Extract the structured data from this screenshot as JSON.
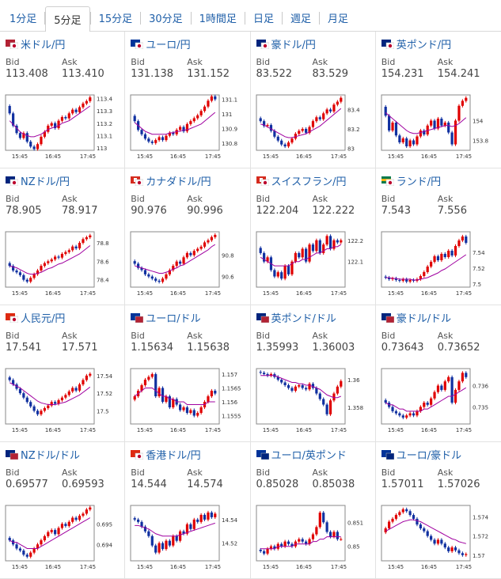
{
  "tabs": [
    {
      "label": "1分足",
      "active": false
    },
    {
      "label": "5分足",
      "active": true
    },
    {
      "label": "15分足",
      "active": false
    },
    {
      "label": "30分足",
      "active": false
    },
    {
      "label": "1時間足",
      "active": false
    },
    {
      "label": "日足",
      "active": false
    },
    {
      "label": "週足",
      "active": false
    },
    {
      "label": "月足",
      "active": false
    }
  ],
  "labels": {
    "bid": "Bid",
    "ask": "Ask"
  },
  "colors": {
    "up": "#e00000",
    "down": "#1030a0",
    "ma": "#a000a0",
    "link": "#1f5fa8"
  },
  "pairs": [
    {
      "name": "米ドル/円",
      "flag": "us-jp-flag-icon",
      "bid": "113.408",
      "ask": "113.410"
    },
    {
      "name": "ユーロ/円",
      "flag": "eu-jp-flag-icon",
      "bid": "131.138",
      "ask": "131.152"
    },
    {
      "name": "豪ドル/円",
      "flag": "au-jp-flag-icon",
      "bid": "83.522",
      "ask": "83.529"
    },
    {
      "name": "英ポンド/円",
      "flag": "gb-jp-flag-icon",
      "bid": "154.231",
      "ask": "154.241"
    },
    {
      "name": "NZドル/円",
      "flag": "nz-jp-flag-icon",
      "bid": "78.905",
      "ask": "78.917"
    },
    {
      "name": "カナダドル/円",
      "flag": "ca-jp-flag-icon",
      "bid": "90.976",
      "ask": "90.996"
    },
    {
      "name": "スイスフラン/円",
      "flag": "ch-jp-flag-icon",
      "bid": "122.204",
      "ask": "122.222"
    },
    {
      "name": "ランド/円",
      "flag": "za-jp-flag-icon",
      "bid": "7.543",
      "ask": "7.556"
    },
    {
      "name": "人民元/円",
      "flag": "cn-jp-flag-icon",
      "bid": "17.541",
      "ask": "17.571"
    },
    {
      "name": "ユーロ/ドル",
      "flag": "eu-us-flag-icon",
      "bid": "1.15634",
      "ask": "1.15638"
    },
    {
      "name": "英ポンド/ドル",
      "flag": "gb-us-flag-icon",
      "bid": "1.35993",
      "ask": "1.36003"
    },
    {
      "name": "豪ドル/ドル",
      "flag": "au-us-flag-icon",
      "bid": "0.73643",
      "ask": "0.73652"
    },
    {
      "name": "NZドル/ドル",
      "flag": "nz-us-flag-icon",
      "bid": "0.69577",
      "ask": "0.69593"
    },
    {
      "name": "香港ドル/円",
      "flag": "hk-jp-flag-icon",
      "bid": "14.544",
      "ask": "14.574"
    },
    {
      "name": "ユーロ/英ポンド",
      "flag": "eu-gb-flag-icon",
      "bid": "0.85028",
      "ask": "0.85038"
    },
    {
      "name": "ユーロ/豪ドル",
      "flag": "eu-au-flag-icon",
      "bid": "1.57011",
      "ask": "1.57026"
    }
  ],
  "chart_data": [
    {
      "type": "candlestick",
      "xticks": [
        "15:45",
        "16:45",
        "17:45"
      ],
      "yticks": [
        "113",
        "113.1",
        "113.2",
        "113.3",
        "113.4"
      ],
      "ylim": [
        112.98,
        113.43
      ],
      "close": [
        113.28,
        113.18,
        113.12,
        113.08,
        113.12,
        113.05,
        113.01,
        112.99,
        113.03,
        113.09,
        113.13,
        113.18,
        113.2,
        113.16,
        113.22,
        113.25,
        113.24,
        113.28,
        113.31,
        113.29,
        113.33,
        113.36,
        113.38,
        113.41
      ],
      "ma": [
        113.22,
        113.19,
        113.16,
        113.13,
        113.11,
        113.1,
        113.09,
        113.09,
        113.1,
        113.11,
        113.13,
        113.15,
        113.16,
        113.17,
        113.18,
        113.2,
        113.21,
        113.22,
        113.24,
        113.26,
        113.28,
        113.3,
        113.32,
        113.34
      ]
    },
    {
      "type": "candlestick",
      "xticks": [
        "15:45",
        "16:45",
        "17:45"
      ],
      "yticks": [
        "130.8",
        "130.9",
        "131",
        "131.1"
      ],
      "ylim": [
        130.75,
        131.13
      ],
      "close": [
        130.95,
        130.89,
        130.86,
        130.83,
        130.81,
        130.8,
        130.82,
        130.84,
        130.82,
        130.85,
        130.87,
        130.86,
        130.89,
        130.91,
        130.88,
        130.93,
        130.95,
        130.97,
        130.99,
        131.02,
        131.05,
        131.09,
        131.12,
        131.1
      ],
      "ma": [
        130.94,
        130.92,
        130.9,
        130.88,
        130.87,
        130.86,
        130.86,
        130.86,
        130.86,
        130.86,
        130.87,
        130.87,
        130.88,
        130.88,
        130.89,
        130.89,
        130.9,
        130.91,
        130.92,
        130.93,
        130.95,
        130.97,
        130.99,
        131.01
      ]
    },
    {
      "type": "candlestick",
      "xticks": [
        "15:45",
        "16:45",
        "17:45"
      ],
      "yticks": [
        "83",
        "83.2",
        "83.4"
      ],
      "ylim": [
        82.98,
        83.55
      ],
      "close": [
        83.28,
        83.23,
        83.24,
        83.18,
        83.12,
        83.08,
        83.04,
        83.02,
        83.06,
        83.1,
        83.15,
        83.18,
        83.2,
        83.16,
        83.22,
        83.28,
        83.32,
        83.3,
        83.36,
        83.4,
        83.38,
        83.45,
        83.48,
        83.52
      ],
      "ma": [
        83.25,
        83.24,
        83.22,
        83.2,
        83.18,
        83.16,
        83.14,
        83.12,
        83.11,
        83.11,
        83.12,
        83.13,
        83.14,
        83.15,
        83.17,
        83.19,
        83.21,
        83.23,
        83.26,
        83.29,
        83.32,
        83.35,
        83.38,
        83.41
      ]
    },
    {
      "type": "candlestick",
      "xticks": [
        "15:45",
        "16:45",
        "17:45"
      ],
      "yticks": [
        "153.8",
        "154"
      ],
      "ylim": [
        153.7,
        154.26
      ],
      "close": [
        154.05,
        153.9,
        153.98,
        153.85,
        153.78,
        153.82,
        153.74,
        153.8,
        153.76,
        153.84,
        153.9,
        153.86,
        153.95,
        154.0,
        153.92,
        154.02,
        153.95,
        153.98,
        153.88,
        153.76,
        154.0,
        154.15,
        154.2,
        154.23
      ],
      "ma": [
        154.08,
        154.05,
        154.02,
        153.99,
        153.96,
        153.93,
        153.9,
        153.88,
        153.87,
        153.87,
        153.88,
        153.89,
        153.9,
        153.91,
        153.92,
        153.93,
        153.94,
        153.95,
        153.95,
        153.94,
        153.95,
        153.97,
        154.0,
        154.03
      ]
    },
    {
      "type": "candlestick",
      "xticks": [
        "15:45",
        "16:45",
        "17:45"
      ],
      "yticks": [
        "78.4",
        "78.6",
        "78.8"
      ],
      "ylim": [
        78.32,
        78.92
      ],
      "close": [
        78.55,
        78.5,
        78.48,
        78.45,
        78.4,
        78.38,
        78.42,
        78.46,
        78.5,
        78.55,
        78.58,
        78.6,
        78.62,
        78.65,
        78.64,
        78.68,
        78.7,
        78.72,
        78.76,
        78.74,
        78.8,
        78.84,
        78.86,
        78.88
      ],
      "ma": [
        78.55,
        78.54,
        78.53,
        78.51,
        78.49,
        78.47,
        78.46,
        78.46,
        78.47,
        78.48,
        78.5,
        78.52,
        78.53,
        78.55,
        78.57,
        78.58,
        78.6,
        78.62,
        78.64,
        78.66,
        78.68,
        78.71,
        78.74,
        78.77
      ]
    },
    {
      "type": "candlestick",
      "xticks": [
        "15:45",
        "16:45",
        "17:45"
      ],
      "yticks": [
        "90.6",
        "90.8"
      ],
      "ylim": [
        90.5,
        91.02
      ],
      "close": [
        90.72,
        90.68,
        90.66,
        90.62,
        90.6,
        90.58,
        90.56,
        90.55,
        90.58,
        90.62,
        90.66,
        90.7,
        90.74,
        90.72,
        90.78,
        90.82,
        90.8,
        90.84,
        90.86,
        90.88,
        90.92,
        90.94,
        90.97,
        90.99
      ],
      "ma": [
        90.7,
        90.69,
        90.68,
        90.67,
        90.66,
        90.65,
        90.64,
        90.63,
        90.63,
        90.64,
        90.65,
        90.67,
        90.68,
        90.7,
        90.71,
        90.73,
        90.75,
        90.77,
        90.79,
        90.81,
        90.83,
        90.85,
        90.88,
        90.9
      ]
    },
    {
      "type": "candlestick",
      "xticks": [
        "15:45",
        "16:45",
        "17:45"
      ],
      "yticks": [
        "122.1",
        "122.2"
      ],
      "ylim": [
        121.98,
        122.24
      ],
      "close": [
        122.14,
        122.1,
        122.12,
        122.06,
        122.03,
        122.05,
        122.02,
        122.08,
        122.04,
        122.1,
        122.14,
        122.12,
        122.16,
        122.1,
        122.18,
        122.15,
        122.2,
        122.14,
        122.18,
        122.22,
        122.16,
        122.2,
        122.19,
        122.2
      ],
      "ma": [
        122.12,
        122.11,
        122.1,
        122.09,
        122.08,
        122.08,
        122.08,
        122.08,
        122.08,
        122.09,
        122.1,
        122.1,
        122.11,
        122.11,
        122.12,
        122.13,
        122.14,
        122.14,
        122.15,
        122.16,
        122.16,
        122.17,
        122.17,
        122.18
      ]
    },
    {
      "type": "candlestick",
      "xticks": [
        "15:45",
        "16:45",
        "17:45"
      ],
      "yticks": [
        "7.5",
        "7.52",
        "7.54"
      ],
      "ylim": [
        7.496,
        7.566
      ],
      "close": [
        7.508,
        7.506,
        7.507,
        7.505,
        7.504,
        7.506,
        7.503,
        7.505,
        7.504,
        7.506,
        7.51,
        7.515,
        7.522,
        7.528,
        7.535,
        7.53,
        7.538,
        7.534,
        7.542,
        7.536,
        7.548,
        7.555,
        7.56,
        7.552
      ],
      "ma": [
        7.508,
        7.508,
        7.507,
        7.507,
        7.506,
        7.506,
        7.506,
        7.506,
        7.505,
        7.505,
        7.506,
        7.507,
        7.508,
        7.51,
        7.512,
        7.514,
        7.517,
        7.519,
        7.522,
        7.525,
        7.528,
        7.531,
        7.534,
        7.537
      ]
    },
    {
      "type": "candlestick",
      "xticks": [
        "15:45",
        "16:45",
        "17:45"
      ],
      "yticks": [
        "17.5",
        "17.52",
        "17.54"
      ],
      "ylim": [
        17.485,
        17.548
      ],
      "close": [
        17.535,
        17.53,
        17.525,
        17.52,
        17.515,
        17.51,
        17.505,
        17.5,
        17.496,
        17.5,
        17.503,
        17.506,
        17.51,
        17.508,
        17.512,
        17.515,
        17.518,
        17.522,
        17.526,
        17.523,
        17.53,
        17.535,
        17.54,
        17.542
      ],
      "ma": [
        17.532,
        17.53,
        17.528,
        17.526,
        17.523,
        17.52,
        17.517,
        17.514,
        17.511,
        17.509,
        17.508,
        17.507,
        17.507,
        17.507,
        17.508,
        17.509,
        17.51,
        17.512,
        17.514,
        17.516,
        17.518,
        17.521,
        17.524,
        17.527
      ]
    },
    {
      "type": "candlestick",
      "xticks": [
        "15:45",
        "16:45",
        "17:45"
      ],
      "yticks": [
        "1.1555",
        "1.156",
        "1.1565",
        "1.157"
      ],
      "ylim": [
        1.1552,
        1.1572
      ],
      "close": [
        1.1562,
        1.1564,
        1.1566,
        1.1568,
        1.1569,
        1.157,
        1.1562,
        1.1565,
        1.156,
        1.1562,
        1.1558,
        1.1561,
        1.1559,
        1.1557,
        1.1558,
        1.1556,
        1.1557,
        1.1555,
        1.1556,
        1.1558,
        1.156,
        1.1562,
        1.1564,
        1.1563
      ],
      "ma": [
        1.1562,
        1.1563,
        1.1564,
        1.1565,
        1.1565,
        1.1565,
        1.1564,
        1.1563,
        1.1562,
        1.1562,
        1.1561,
        1.1561,
        1.156,
        1.156,
        1.156,
        1.1559,
        1.1559,
        1.1559,
        1.1559,
        1.1559,
        1.1559,
        1.156,
        1.156,
        1.156
      ]
    },
    {
      "type": "candlestick",
      "xticks": [
        "15:45",
        "16:45",
        "17:45"
      ],
      "yticks": [
        "1.358",
        "1.36"
      ],
      "ylim": [
        1.3568,
        1.3608
      ],
      "close": [
        1.3605,
        1.3604,
        1.3603,
        1.3604,
        1.3602,
        1.36,
        1.3598,
        1.3596,
        1.3594,
        1.3592,
        1.3595,
        1.3596,
        1.3594,
        1.3593,
        1.3597,
        1.3594,
        1.359,
        1.3586,
        1.3582,
        1.3575,
        1.3585,
        1.359,
        1.3595,
        1.3599
      ],
      "ma": [
        1.3603,
        1.3603,
        1.3603,
        1.3603,
        1.3603,
        1.3602,
        1.3601,
        1.36,
        1.3599,
        1.3598,
        1.3598,
        1.3597,
        1.3597,
        1.3596,
        1.3596,
        1.3595,
        1.3594,
        1.3593,
        1.3591,
        1.3589,
        1.3588,
        1.3587,
        1.3587,
        1.3588
      ]
    },
    {
      "type": "candlestick",
      "xticks": [
        "15:45",
        "16:45",
        "17:45"
      ],
      "yticks": [
        "0.735",
        "0.736"
      ],
      "ylim": [
        0.7342,
        0.7368
      ],
      "close": [
        0.7352,
        0.735,
        0.7348,
        0.7347,
        0.7346,
        0.7345,
        0.7346,
        0.7347,
        0.7346,
        0.7348,
        0.735,
        0.7352,
        0.7351,
        0.7354,
        0.7357,
        0.736,
        0.7358,
        0.7362,
        0.7364,
        0.7352,
        0.7358,
        0.7362,
        0.7366,
        0.7364
      ],
      "ma": [
        0.7352,
        0.7351,
        0.7351,
        0.735,
        0.7349,
        0.7349,
        0.7348,
        0.7348,
        0.7348,
        0.7348,
        0.7348,
        0.7349,
        0.7349,
        0.735,
        0.7351,
        0.7352,
        0.7353,
        0.7354,
        0.7355,
        0.7355,
        0.7356,
        0.7357,
        0.7358,
        0.7359
      ]
    },
    {
      "type": "candlestick",
      "xticks": [
        "15:45",
        "16:45",
        "17:45"
      ],
      "yticks": [
        "0.694",
        "0.695"
      ],
      "ylim": [
        0.6932,
        0.6959
      ],
      "close": [
        0.6942,
        0.694,
        0.6938,
        0.6937,
        0.6935,
        0.6934,
        0.6936,
        0.6938,
        0.694,
        0.6942,
        0.6944,
        0.6946,
        0.6947,
        0.6945,
        0.6948,
        0.695,
        0.6949,
        0.6951,
        0.6953,
        0.6952,
        0.6954,
        0.6955,
        0.6957,
        0.6958
      ],
      "ma": [
        0.6942,
        0.6941,
        0.6941,
        0.694,
        0.6939,
        0.6938,
        0.6938,
        0.6938,
        0.6938,
        0.6939,
        0.694,
        0.6941,
        0.6942,
        0.6943,
        0.6944,
        0.6945,
        0.6946,
        0.6947,
        0.6948,
        0.6949,
        0.695,
        0.6951,
        0.6952,
        0.6953
      ]
    },
    {
      "type": "candlestick",
      "xticks": [
        "15:45",
        "16:45",
        "17:45"
      ],
      "yticks": [
        "14.52",
        "14.54"
      ],
      "ylim": [
        14.505,
        14.552
      ],
      "close": [
        14.54,
        14.538,
        14.534,
        14.53,
        14.526,
        14.518,
        14.512,
        14.52,
        14.515,
        14.522,
        14.518,
        14.526,
        14.522,
        14.53,
        14.528,
        14.536,
        14.532,
        14.54,
        14.538,
        14.544,
        14.54,
        14.546,
        14.542,
        14.545
      ],
      "ma": [
        14.535,
        14.535,
        14.534,
        14.533,
        14.532,
        14.53,
        14.528,
        14.527,
        14.526,
        14.526,
        14.526,
        14.526,
        14.526,
        14.527,
        14.528,
        14.529,
        14.53,
        14.531,
        14.532,
        14.533,
        14.534,
        14.535,
        14.536,
        14.537
      ]
    },
    {
      "type": "candlestick",
      "xticks": [
        "15:45",
        "16:45",
        "17:45"
      ],
      "yticks": [
        "0.85",
        "0.851"
      ],
      "ylim": [
        0.8494,
        0.8517
      ],
      "close": [
        0.8498,
        0.8497,
        0.8499,
        0.85,
        0.8499,
        0.8501,
        0.85,
        0.8502,
        0.8501,
        0.85,
        0.8502,
        0.8503,
        0.8502,
        0.8501,
        0.8503,
        0.8505,
        0.8508,
        0.8514,
        0.851,
        0.8506,
        0.8504,
        0.8506,
        0.8503,
        0.8503
      ],
      "ma": [
        0.8499,
        0.8499,
        0.8499,
        0.8499,
        0.8499,
        0.85,
        0.85,
        0.85,
        0.85,
        0.85,
        0.8501,
        0.8501,
        0.8501,
        0.8501,
        0.8501,
        0.8502,
        0.8502,
        0.8503,
        0.8503,
        0.8504,
        0.8504,
        0.8504,
        0.8504,
        0.8504
      ]
    },
    {
      "type": "candlestick",
      "xticks": [
        "15:45",
        "16:45",
        "17:45"
      ],
      "yticks": [
        "1.57",
        "1.572",
        "1.574"
      ],
      "ylim": [
        1.5694,
        1.5752
      ],
      "close": [
        1.5728,
        1.5735,
        1.5738,
        1.5742,
        1.5745,
        1.5748,
        1.5746,
        1.5742,
        1.5738,
        1.5732,
        1.5728,
        1.5725,
        1.572,
        1.5716,
        1.5712,
        1.5716,
        1.5712,
        1.5708,
        1.5704,
        1.5708,
        1.5705,
        1.5702,
        1.57,
        1.5701
      ],
      "ma": [
        1.5725,
        1.5727,
        1.5729,
        1.5731,
        1.5733,
        1.5735,
        1.5736,
        1.5737,
        1.5737,
        1.5736,
        1.5735,
        1.5733,
        1.5731,
        1.5729,
        1.5727,
        1.5725,
        1.5723,
        1.5721,
        1.5719,
        1.5717,
        1.5716,
        1.5714,
        1.5713,
        1.5712
      ]
    }
  ]
}
